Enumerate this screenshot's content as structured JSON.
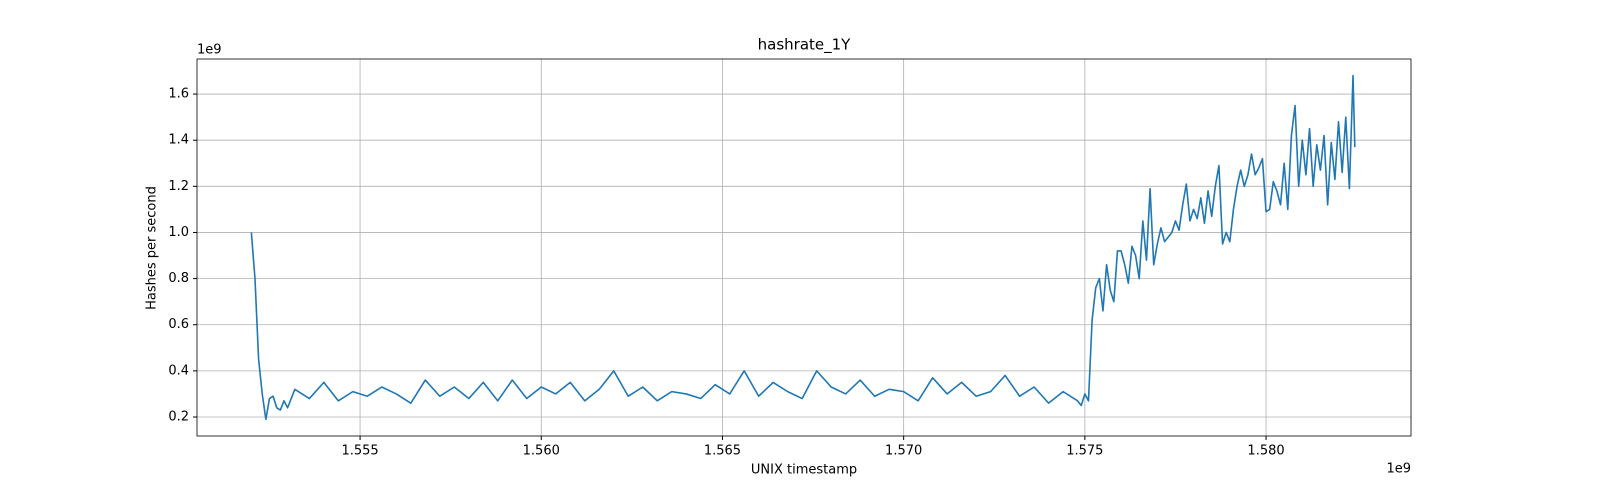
{
  "chart_data": {
    "type": "line",
    "title": "hashrate_1Y",
    "x_label": "UNIX timestamp",
    "y_label": "Hashes per second",
    "x_offset_label": "1e9",
    "y_offset_label": "1e9",
    "xlim": [
      1.5505,
      1.584
    ],
    "ylim": [
      0.1176,
      1.752
    ],
    "xticks": [
      1.555,
      {
        "value": 1.56,
        "label": "1.560"
      },
      1.565,
      {
        "value": 1.57,
        "label": "1.570"
      },
      1.575,
      {
        "value": 1.58,
        "label": "1.580"
      }
    ],
    "yticks": [
      0.2,
      0.4,
      0.6,
      0.8,
      {
        "value": 1.0,
        "label": "1.0"
      },
      1.2,
      1.4,
      1.6
    ],
    "grid": true,
    "x": [
      1.552,
      1.5521,
      1.5522,
      1.5523,
      1.5524,
      1.5525,
      1.5526,
      1.5527,
      1.5528,
      1.5529,
      1.553,
      1.5531,
      1.5532,
      1.5536,
      1.554,
      1.5544,
      1.5548,
      1.5552,
      1.5556,
      1.556,
      1.5564,
      1.5568,
      1.5572,
      1.5576,
      1.558,
      1.5584,
      1.5588,
      1.5592,
      1.5596,
      1.56,
      1.5604,
      1.5608,
      1.5612,
      1.5616,
      1.562,
      1.5624,
      1.5628,
      1.5632,
      1.5636,
      1.564,
      1.5644,
      1.5648,
      1.5652,
      1.5656,
      1.566,
      1.5664,
      1.5668,
      1.5672,
      1.5676,
      1.568,
      1.5684,
      1.5688,
      1.5692,
      1.5696,
      1.57,
      1.5704,
      1.5708,
      1.5712,
      1.5716,
      1.572,
      1.5724,
      1.5728,
      1.5732,
      1.5736,
      1.574,
      1.5744,
      1.5748,
      1.5749,
      1.575,
      1.5751,
      1.5752,
      1.5753,
      1.5754,
      1.5755,
      1.5756,
      1.5757,
      1.5758,
      1.5759,
      1.576,
      1.5761,
      1.5762,
      1.5763,
      1.5764,
      1.5765,
      1.5766,
      1.5767,
      1.5768,
      1.5769,
      1.577,
      1.5771,
      1.5772,
      1.5773,
      1.5774,
      1.5775,
      1.5776,
      1.5777,
      1.5778,
      1.5779,
      1.578,
      1.5781,
      1.5782,
      1.5783,
      1.5784,
      1.5785,
      1.5786,
      1.5787,
      1.5788,
      1.5789,
      1.579,
      1.5791,
      1.5792,
      1.5793,
      1.5794,
      1.5795,
      1.5796,
      1.5797,
      1.5798,
      1.5799,
      1.58,
      1.5801,
      1.5802,
      1.5803,
      1.5804,
      1.5805,
      1.5806,
      1.5807,
      1.5808,
      1.5809,
      1.581,
      1.5811,
      1.5812,
      1.5813,
      1.5814,
      1.5815,
      1.5816,
      1.5817,
      1.5818,
      1.5819,
      1.582,
      1.5821,
      1.5822,
      1.5823,
      1.5824,
      1.58245
    ],
    "series": [
      {
        "name": "hashrate",
        "color": "#1f77b4",
        "values": [
          1.0,
          0.8,
          0.45,
          0.3,
          0.19,
          0.28,
          0.29,
          0.24,
          0.23,
          0.27,
          0.24,
          0.28,
          0.32,
          0.28,
          0.35,
          0.27,
          0.31,
          0.29,
          0.33,
          0.3,
          0.26,
          0.36,
          0.29,
          0.33,
          0.28,
          0.35,
          0.27,
          0.36,
          0.28,
          0.33,
          0.3,
          0.35,
          0.27,
          0.32,
          0.4,
          0.29,
          0.33,
          0.27,
          0.31,
          0.3,
          0.28,
          0.34,
          0.3,
          0.4,
          0.29,
          0.35,
          0.31,
          0.28,
          0.4,
          0.33,
          0.3,
          0.36,
          0.29,
          0.32,
          0.31,
          0.27,
          0.37,
          0.3,
          0.35,
          0.29,
          0.31,
          0.38,
          0.29,
          0.33,
          0.26,
          0.31,
          0.27,
          0.25,
          0.3,
          0.27,
          0.62,
          0.76,
          0.8,
          0.66,
          0.86,
          0.75,
          0.7,
          0.92,
          0.92,
          0.86,
          0.78,
          0.94,
          0.9,
          0.8,
          1.05,
          0.88,
          1.19,
          0.86,
          0.95,
          1.02,
          0.96,
          0.98,
          1.0,
          1.05,
          1.01,
          1.12,
          1.21,
          1.05,
          1.1,
          1.06,
          1.15,
          1.04,
          1.18,
          1.07,
          1.2,
          1.29,
          0.95,
          1.0,
          0.96,
          1.1,
          1.2,
          1.27,
          1.2,
          1.25,
          1.34,
          1.25,
          1.28,
          1.32,
          1.09,
          1.1,
          1.22,
          1.18,
          1.12,
          1.3,
          1.1,
          1.42,
          1.55,
          1.2,
          1.4,
          1.25,
          1.45,
          1.2,
          1.38,
          1.27,
          1.42,
          1.12,
          1.39,
          1.23,
          1.48,
          1.26,
          1.5,
          1.19,
          1.68,
          1.37
        ]
      }
    ]
  }
}
